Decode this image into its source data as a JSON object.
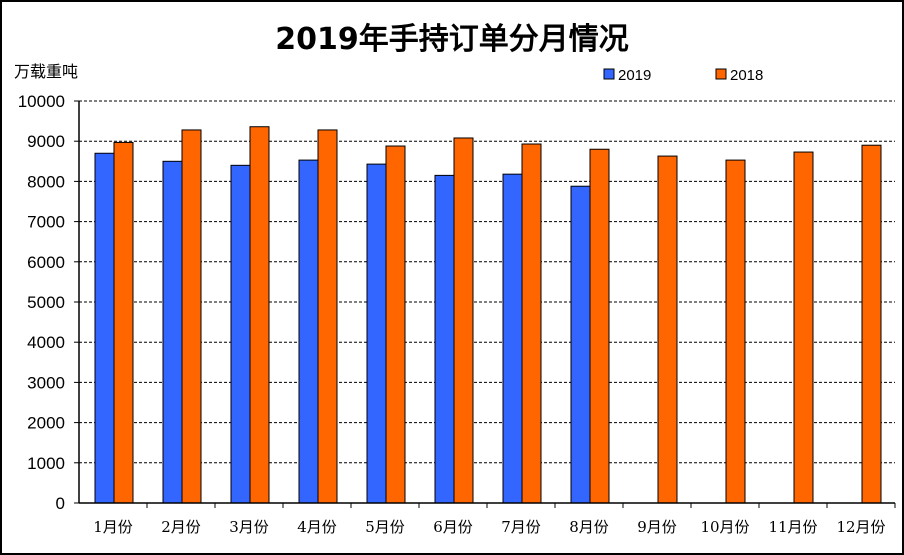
{
  "chart_data": {
    "type": "bar",
    "title": "2019年手持订单分月情况",
    "ylabel": "万载重吨",
    "xlabel": "",
    "categories": [
      "1月份",
      "2月份",
      "3月份",
      "4月份",
      "5月份",
      "6月份",
      "7月份",
      "8月份",
      "9月份",
      "10月份",
      "11月份",
      "12月份"
    ],
    "series": [
      {
        "name": "2019",
        "color": "#3366ff",
        "values": [
          8700,
          8500,
          8400,
          8530,
          8430,
          8150,
          8180,
          7880,
          null,
          null,
          null,
          null
        ]
      },
      {
        "name": "2018",
        "color": "#ff6600",
        "values": [
          8970,
          9280,
          9360,
          9280,
          8880,
          9080,
          8930,
          8800,
          8630,
          8530,
          8730,
          8900
        ]
      }
    ],
    "ylim": [
      0,
      10000
    ],
    "yticks": [
      0,
      1000,
      2000,
      3000,
      4000,
      5000,
      6000,
      7000,
      8000,
      9000,
      10000
    ],
    "grid": "horizontal dashed",
    "legend": "top-right"
  }
}
